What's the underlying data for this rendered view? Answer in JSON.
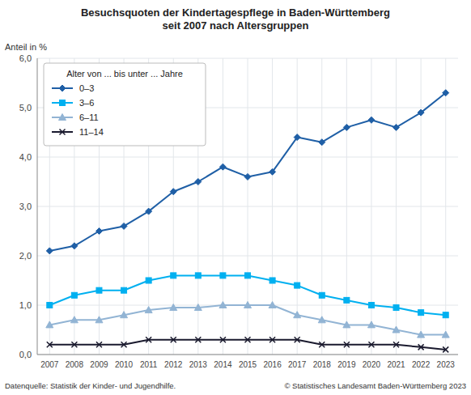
{
  "chart_data": {
    "type": "line",
    "title": "Besuchsquoten der Kindertagespflege in Baden-Württemberg\nseit 2007 nach Altersgruppen",
    "y_label": "Anteil in %",
    "legend_title": "Alter von ... bis unter ... Jahre",
    "annotations": [
      "Datenquelle: Statistik der Kinder- und Jugendhilfe.",
      "© Statistisches Landesamt Baden-Württemberg 2023"
    ],
    "x": [
      2007,
      2008,
      2009,
      2010,
      2011,
      2012,
      2013,
      2014,
      2015,
      2016,
      2017,
      2018,
      2019,
      2020,
      2021,
      2022,
      2023
    ],
    "series": [
      {
        "name": "0–3",
        "color": "#1f5fa6",
        "marker": "diamond",
        "values": [
          2.1,
          2.2,
          2.5,
          2.6,
          2.9,
          3.3,
          3.5,
          3.8,
          3.6,
          3.7,
          4.4,
          4.3,
          4.6,
          4.75,
          4.6,
          4.9,
          5.3
        ]
      },
      {
        "name": "3–6",
        "color": "#00b0f0",
        "marker": "square",
        "values": [
          1.0,
          1.2,
          1.3,
          1.3,
          1.5,
          1.6,
          1.6,
          1.6,
          1.6,
          1.5,
          1.4,
          1.2,
          1.1,
          1.0,
          0.95,
          0.85,
          0.8
        ]
      },
      {
        "name": "6–11",
        "color": "#92b4d4",
        "marker": "triangle",
        "values": [
          0.6,
          0.7,
          0.7,
          0.8,
          0.9,
          0.95,
          0.95,
          1.0,
          1.0,
          1.0,
          0.8,
          0.7,
          0.6,
          0.6,
          0.5,
          0.4,
          0.4
        ]
      },
      {
        "name": "11–14",
        "color": "#1a1a2e",
        "marker": "x",
        "values": [
          0.2,
          0.2,
          0.2,
          0.2,
          0.3,
          0.3,
          0.3,
          0.3,
          0.3,
          0.3,
          0.3,
          0.2,
          0.2,
          0.2,
          0.2,
          0.15,
          0.1
        ]
      }
    ],
    "xlim": [
      2006.5,
      2023.5
    ],
    "xticks": [
      2007,
      2008,
      2009,
      2010,
      2011,
      2012,
      2013,
      2014,
      2015,
      2016,
      2017,
      2018,
      2019,
      2020,
      2021,
      2022,
      2023
    ],
    "ylim": [
      0,
      6.0
    ],
    "yticks": [
      {
        "value": 0.0,
        "label": "0,0"
      },
      {
        "value": 1.0,
        "label": "1,0"
      },
      {
        "value": 2.0,
        "label": "2,0"
      },
      {
        "value": 3.0,
        "label": "3,0"
      },
      {
        "value": 4.0,
        "label": "4,0"
      },
      {
        "value": 5.0,
        "label": "5,0"
      },
      {
        "value": 6.0,
        "label": "6,0"
      }
    ],
    "grid": true,
    "legend": "upper left"
  }
}
